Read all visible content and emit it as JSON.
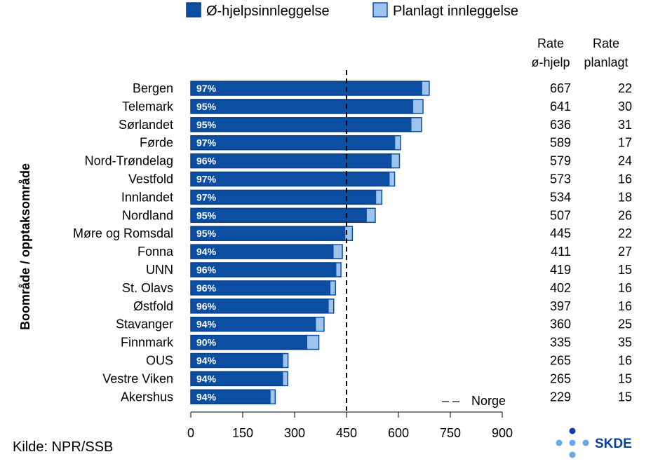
{
  "chart_data": {
    "type": "bar",
    "orientation": "horizontal",
    "stacked": true,
    "ylabel": "Boområde / opptaksområde",
    "xlim": [
      0,
      900
    ],
    "x_ticks": [
      "0",
      "150",
      "300",
      "450",
      "600",
      "750",
      "900"
    ],
    "categories": [
      "Bergen",
      "Telemark",
      "Sørlandet",
      "Førde",
      "Nord-Trøndelag",
      "Vestfold",
      "Innlandet",
      "Nordland",
      "Møre og Romsdal",
      "Fonna",
      "UNN",
      "St. Olavs",
      "Østfold",
      "Stavanger",
      "Finnmark",
      "OUS",
      "Vestre Viken",
      "Akershus"
    ],
    "series": [
      {
        "name": "Ø-hjelpsinnleggelse",
        "color": "#0b4ea2",
        "values": [
          667,
          641,
          636,
          589,
          579,
          573,
          534,
          507,
          445,
          411,
          419,
          402,
          397,
          360,
          335,
          265,
          265,
          229
        ]
      },
      {
        "name": "Planlagt innleggelse",
        "color": "#9ec3ec",
        "values": [
          22,
          30,
          31,
          17,
          24,
          16,
          18,
          26,
          22,
          27,
          15,
          16,
          16,
          25,
          35,
          16,
          15,
          15
        ]
      }
    ],
    "percent_labels": [
      "97%",
      "95%",
      "95%",
      "97%",
      "96%",
      "97%",
      "97%",
      "95%",
      "95%",
      "94%",
      "96%",
      "96%",
      "96%",
      "94%",
      "90%",
      "94%",
      "94%",
      "94%"
    ],
    "reference_line": {
      "name": "Norge",
      "value": 450
    },
    "table": {
      "headers": [
        [
          "Rate",
          "ø-hjelp"
        ],
        [
          "Rate",
          "planlagt"
        ]
      ],
      "rows": [
        [
          "667",
          "22"
        ],
        [
          "641",
          "30"
        ],
        [
          "636",
          "31"
        ],
        [
          "589",
          "17"
        ],
        [
          "579",
          "24"
        ],
        [
          "573",
          "16"
        ],
        [
          "534",
          "18"
        ],
        [
          "507",
          "26"
        ],
        [
          "445",
          "22"
        ],
        [
          "411",
          "27"
        ],
        [
          "419",
          "15"
        ],
        [
          "402",
          "16"
        ],
        [
          "397",
          "16"
        ],
        [
          "360",
          "25"
        ],
        [
          "335",
          "35"
        ],
        [
          "265",
          "16"
        ],
        [
          "265",
          "15"
        ],
        [
          "229",
          "15"
        ]
      ]
    },
    "legend_position": "top",
    "grid": false
  },
  "legend": {
    "emergency": "Ø-hjelpsinnleggelse",
    "planned": "Planlagt innleggelse",
    "reference_dash": "– –",
    "reference": "Norge"
  },
  "source": "Kilde: NPR/SSB",
  "logo": {
    "text": "SKDE",
    "color": "#0b3fa0",
    "dot_color": "#6aa8e8"
  }
}
